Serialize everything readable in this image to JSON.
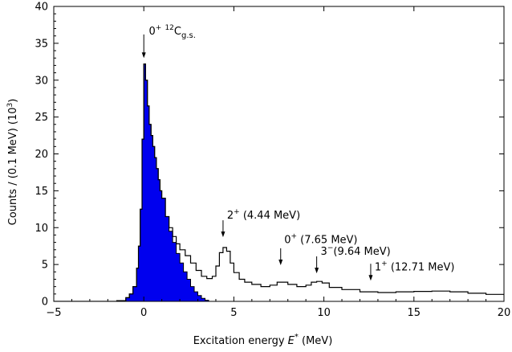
{
  "chart_data": {
    "type": "histogram",
    "xlabel_text": "Excitation energy",
    "xlabel_symbol": "E",
    "xlabel_symbol_sup": "*",
    "xlabel_unit": "(MeV)",
    "ylabel": "Counts / (0.1 MeV) (10",
    "ylabel_sup": "3",
    "ylabel_end": ")",
    "xlim": [
      -5,
      20
    ],
    "ylim": [
      0,
      40
    ],
    "x_ticks": [
      "−5",
      "0",
      "5",
      "10",
      "15",
      "20"
    ],
    "x_tick_values": [
      -5,
      0,
      5,
      10,
      15,
      20
    ],
    "y_ticks": [
      "0",
      "5",
      "10",
      "15",
      "20",
      "25",
      "30",
      "35",
      "40"
    ],
    "y_tick_values": [
      0,
      5,
      10,
      15,
      20,
      25,
      30,
      35,
      40
    ],
    "grid": false,
    "colors": {
      "filled": "#0000ee",
      "line": "#000000"
    },
    "ground_state_peak": {
      "x": [
        -2.0,
        -1.5,
        -1.0,
        -0.8,
        -0.6,
        -0.4,
        -0.3,
        -0.2,
        -0.1,
        0.0,
        0.05,
        0.1,
        0.2,
        0.3,
        0.4,
        0.5,
        0.6,
        0.7,
        0.8,
        0.9,
        1.0,
        1.2,
        1.4,
        1.6,
        1.8,
        2.0,
        2.2,
        2.4,
        2.6,
        2.8,
        3.0,
        3.2,
        3.4,
        3.6
      ],
      "y": [
        0.0,
        0.1,
        0.5,
        1.0,
        2.0,
        4.5,
        7.5,
        12.5,
        22.0,
        32.2,
        32.2,
        30.0,
        26.5,
        24.0,
        22.5,
        21.0,
        19.5,
        18.0,
        16.5,
        15.0,
        14.0,
        11.5,
        9.5,
        8.0,
        6.5,
        5.2,
        4.0,
        3.0,
        2.0,
        1.3,
        0.8,
        0.4,
        0.15,
        0.0
      ]
    },
    "total_spectrum": {
      "x": [
        -5.0,
        -2.0,
        -1.5,
        -1.0,
        -0.8,
        -0.6,
        -0.4,
        -0.3,
        -0.2,
        -0.1,
        0.0,
        0.05,
        0.1,
        0.2,
        0.3,
        0.4,
        0.5,
        0.6,
        0.7,
        0.8,
        0.9,
        1.0,
        1.2,
        1.4,
        1.6,
        1.8,
        2.0,
        2.3,
        2.6,
        2.9,
        3.2,
        3.5,
        3.8,
        4.0,
        4.2,
        4.4,
        4.6,
        4.8,
        5.0,
        5.3,
        5.6,
        6.0,
        6.5,
        7.0,
        7.4,
        7.7,
        8.0,
        8.5,
        9.0,
        9.3,
        9.6,
        9.9,
        10.3,
        11.0,
        12.0,
        13.0,
        14.0,
        15.0,
        16.0,
        17.0,
        18.0,
        19.0,
        20.0
      ],
      "y": [
        0.0,
        0.0,
        0.1,
        0.5,
        1.0,
        2.0,
        4.5,
        7.5,
        12.5,
        22.0,
        32.2,
        32.2,
        30.0,
        26.5,
        24.0,
        22.5,
        21.0,
        19.5,
        18.0,
        16.5,
        15.0,
        14.0,
        11.5,
        10.0,
        8.8,
        7.8,
        7.0,
        6.2,
        5.2,
        4.2,
        3.4,
        3.1,
        3.4,
        4.8,
        6.6,
        7.3,
        6.8,
        5.2,
        3.9,
        3.0,
        2.6,
        2.3,
        2.0,
        2.2,
        2.6,
        2.6,
        2.3,
        2.0,
        2.2,
        2.6,
        2.7,
        2.5,
        1.9,
        1.6,
        1.3,
        1.2,
        1.3,
        1.35,
        1.4,
        1.3,
        1.1,
        0.95,
        0.85
      ]
    },
    "annotations": [
      {
        "x": 0.0,
        "y_tip": 33.0,
        "y_tail": 36.2,
        "text_pre": "0",
        "sup": "+",
        "text_mid": " ",
        "sup2": "12",
        "text_main": "C",
        "sub": "g.s.",
        "text_post": "",
        "label_dx": 8,
        "label_dy": -2,
        "label_x": 0.28,
        "label_y": 36.2
      },
      {
        "x": 4.4,
        "y_tip": 8.7,
        "y_tail": 11.0,
        "text_pre": "2",
        "sup": "+",
        "text_post": " (4.44 MeV)",
        "label_x": 4.62,
        "label_y": 11.2
      },
      {
        "x": 7.6,
        "y_tip": 4.9,
        "y_tail": 7.2,
        "text_pre": "0",
        "sup": "+",
        "text_post": " (7.65 MeV)",
        "label_x": 7.8,
        "label_y": 7.9
      },
      {
        "x": 9.6,
        "y_tip": 3.8,
        "y_tail": 6.1,
        "text_pre": "3",
        "sup": "−",
        "text_post": "(9.64 MeV)",
        "label_x": 9.82,
        "label_y": 6.3
      },
      {
        "x": 12.6,
        "y_tip": 2.8,
        "y_tail": 5.1,
        "text_pre": "1",
        "sup": "+",
        "text_post": " (12.71 MeV)",
        "label_x": 12.82,
        "label_y": 4.2
      }
    ]
  }
}
